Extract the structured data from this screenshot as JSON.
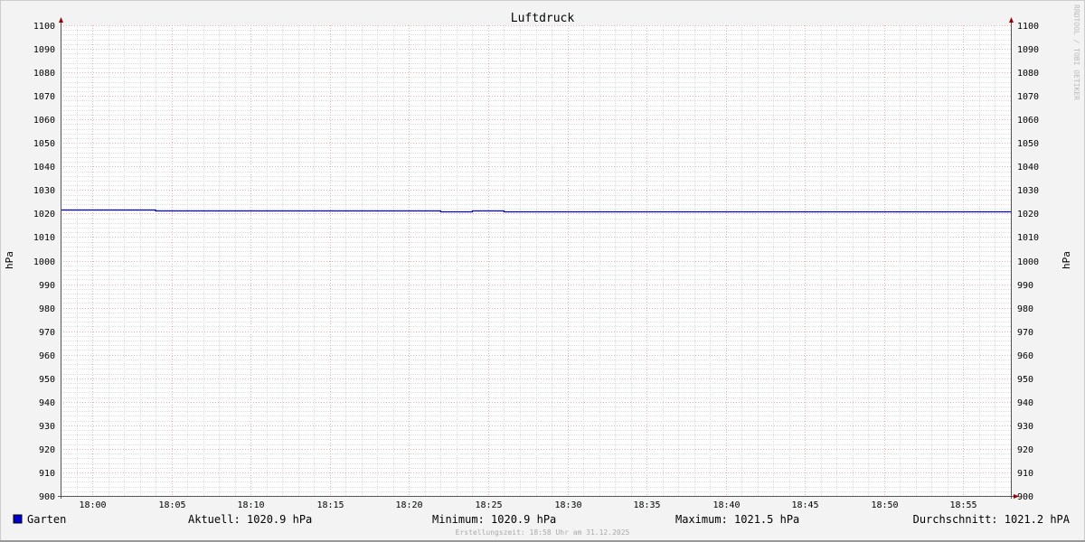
{
  "chart_data": {
    "type": "line",
    "title": "Luftdruck",
    "ylabel": "hPa",
    "ylabel_right": "hPa",
    "ylim": [
      900,
      1100
    ],
    "yticks": [
      900,
      910,
      920,
      930,
      940,
      950,
      960,
      970,
      980,
      990,
      1000,
      1010,
      1020,
      1030,
      1040,
      1050,
      1060,
      1070,
      1080,
      1090,
      1100
    ],
    "xlim": [
      "17:58",
      "18:58"
    ],
    "xticks": [
      "18:00",
      "18:05",
      "18:10",
      "18:15",
      "18:20",
      "18:25",
      "18:30",
      "18:35",
      "18:40",
      "18:45",
      "18:50",
      "18:55"
    ],
    "grid": true,
    "series": [
      {
        "name": "Garten",
        "color": "#0000cc",
        "step": true,
        "points": [
          {
            "t": "17:58",
            "v": 1021.5
          },
          {
            "t": "18:04",
            "v": 1021.2
          },
          {
            "t": "18:22",
            "v": 1020.9
          },
          {
            "t": "18:24",
            "v": 1021.2
          },
          {
            "t": "18:26",
            "v": 1020.9
          },
          {
            "t": "18:58",
            "v": 1020.9
          }
        ]
      }
    ],
    "legend": {
      "placement": "bottom",
      "label": "Garten",
      "aktuell": "Aktuell: 1020.9 hPa",
      "minimum": "Minimum: 1020.9 hPa",
      "maximum": "Maximum: 1021.5 hPa",
      "durchschnitt": "Durchschnitt: 1021.2 hPA"
    },
    "watermark": "RRDTOOL / TOBI OETIKER",
    "footer": "Erstellungszeit: 18:58 Uhr am 31.12.2025"
  }
}
